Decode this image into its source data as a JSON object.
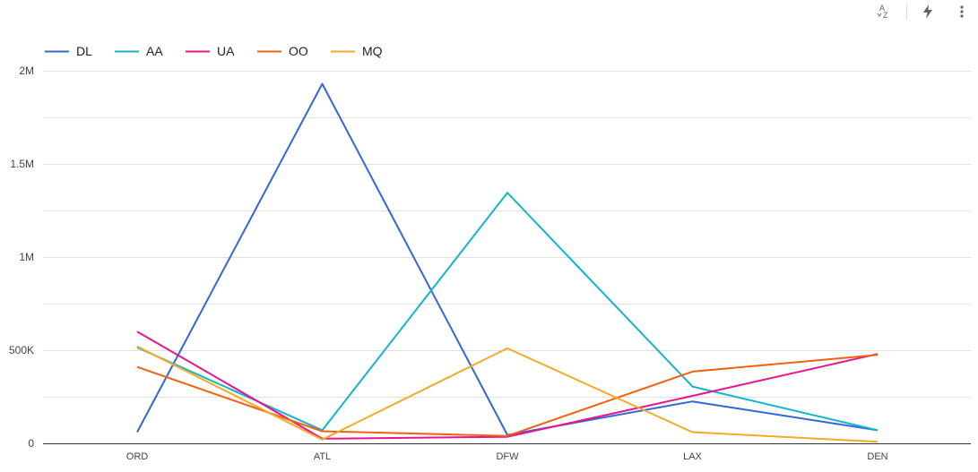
{
  "toolbar": {
    "sort_icon": "sort-az-icon",
    "lightning_icon": "lightning-icon",
    "menu_icon": "more-vert-icon",
    "sort_text_top": "A",
    "sort_text_bottom": "Z"
  },
  "chart_data": {
    "type": "line",
    "title": "",
    "xlabel": "",
    "ylabel": "",
    "categories": [
      "ORD",
      "ATL",
      "DFW",
      "LAX",
      "DEN"
    ],
    "ylim": [
      0,
      2000000
    ],
    "yticks": [
      0,
      500000,
      1000000,
      1500000,
      2000000
    ],
    "ytick_labels": [
      "0",
      "500K",
      "1M",
      "1.5M",
      "2M"
    ],
    "grid": true,
    "legend_position": "top-left",
    "series": [
      {
        "name": "DL",
        "color": "#3367d6",
        "values": [
          60000,
          1930000,
          45000,
          225000,
          70000
        ]
      },
      {
        "name": "AA",
        "color": "#12b5cb",
        "values": [
          515000,
          70000,
          1345000,
          305000,
          70000
        ]
      },
      {
        "name": "UA",
        "color": "#e8148c",
        "values": [
          600000,
          25000,
          35000,
          255000,
          480000
        ]
      },
      {
        "name": "OO",
        "color": "#f0620e",
        "values": [
          410000,
          65000,
          40000,
          385000,
          475000
        ]
      },
      {
        "name": "MQ",
        "color": "#f9a825",
        "values": [
          520000,
          20000,
          510000,
          60000,
          8000
        ]
      }
    ]
  }
}
